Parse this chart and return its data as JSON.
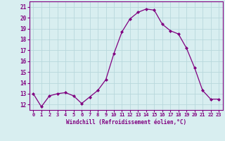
{
  "x": [
    0,
    1,
    2,
    3,
    4,
    5,
    6,
    7,
    8,
    9,
    10,
    11,
    12,
    13,
    14,
    15,
    16,
    17,
    18,
    19,
    20,
    21,
    22,
    23
  ],
  "y": [
    13.0,
    11.8,
    12.8,
    13.0,
    13.1,
    12.8,
    12.1,
    12.7,
    13.3,
    14.3,
    16.7,
    18.7,
    19.9,
    20.5,
    20.8,
    20.7,
    19.4,
    18.8,
    18.5,
    17.2,
    15.4,
    13.3,
    12.5,
    12.5
  ],
  "line_color": "#800080",
  "marker": "D",
  "marker_size": 2,
  "bg_color": "#d8eef0",
  "grid_color": "#b8d8dc",
  "xlabel": "Windchill (Refroidissement éolien,°C)",
  "xlabel_color": "#800080",
  "tick_color": "#800080",
  "axis_color": "#800080",
  "ylim": [
    11.5,
    21.5
  ],
  "yticks": [
    12,
    13,
    14,
    15,
    16,
    17,
    18,
    19,
    20,
    21
  ],
  "xlim": [
    -0.5,
    23.5
  ],
  "xticks": [
    0,
    1,
    2,
    3,
    4,
    5,
    6,
    7,
    8,
    9,
    10,
    11,
    12,
    13,
    14,
    15,
    16,
    17,
    18,
    19,
    20,
    21,
    22,
    23
  ]
}
